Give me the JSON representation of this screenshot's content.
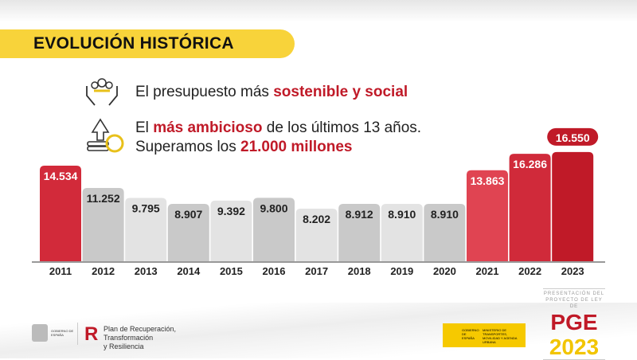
{
  "header": {
    "title": "EVOLUCIÓN HISTÓRICA"
  },
  "lines": {
    "l1_pre": "El presupuesto más ",
    "l1_bold": "sostenible y social",
    "l2_pre": "El ",
    "l2_bold": "más ambicioso",
    "l2_post": " de los últimos 13 años.",
    "l3_pre": "Superamos los ",
    "l3_bold": "21.000 millones"
  },
  "icons": {
    "people": "hands-people-icon",
    "growth": "coins-arrow-icon"
  },
  "chart_data": {
    "type": "bar",
    "categories": [
      "2011",
      "2012",
      "2013",
      "2014",
      "2015",
      "2016",
      "2017",
      "2018",
      "2019",
      "2020",
      "2021",
      "2022",
      "2023"
    ],
    "values": [
      14534,
      11252,
      9795,
      8907,
      9392,
      9800,
      8202,
      8912,
      8910,
      8910,
      13863,
      16286,
      16550
    ],
    "labels": [
      "14.534",
      "11.252",
      "9.795",
      "8.907",
      "9.392",
      "9.800",
      "8.202",
      "8.912",
      "8.910",
      "8.910",
      "13.863",
      "16.286",
      "16.550"
    ],
    "colors": [
      "#d22a3a",
      "#c9c9c9",
      "#e3e3e3",
      "#c9c9c9",
      "#e3e3e3",
      "#c9c9c9",
      "#e3e3e3",
      "#c9c9c9",
      "#e3e3e3",
      "#c9c9c9",
      "#e04452",
      "#d02a3a",
      "#c01a28"
    ],
    "title": "",
    "xlabel": "",
    "ylabel": ""
  },
  "footer": {
    "gov": "GOBIERNO DE ESPAÑA",
    "plan1": "Plan de Recuperación,",
    "plan2": "Transformación",
    "plan3": "y Resiliencia",
    "min_gov": "GOBIERNO DE ESPAÑA",
    "min_name": "MINISTERIO DE TRANSPORTES, MOVILIDAD Y AGENDA URBANA",
    "pge_top": "PRESENTACIÓN DEL PROYECTO DE LEY DE",
    "pge": "PGE",
    "year": "2023"
  }
}
